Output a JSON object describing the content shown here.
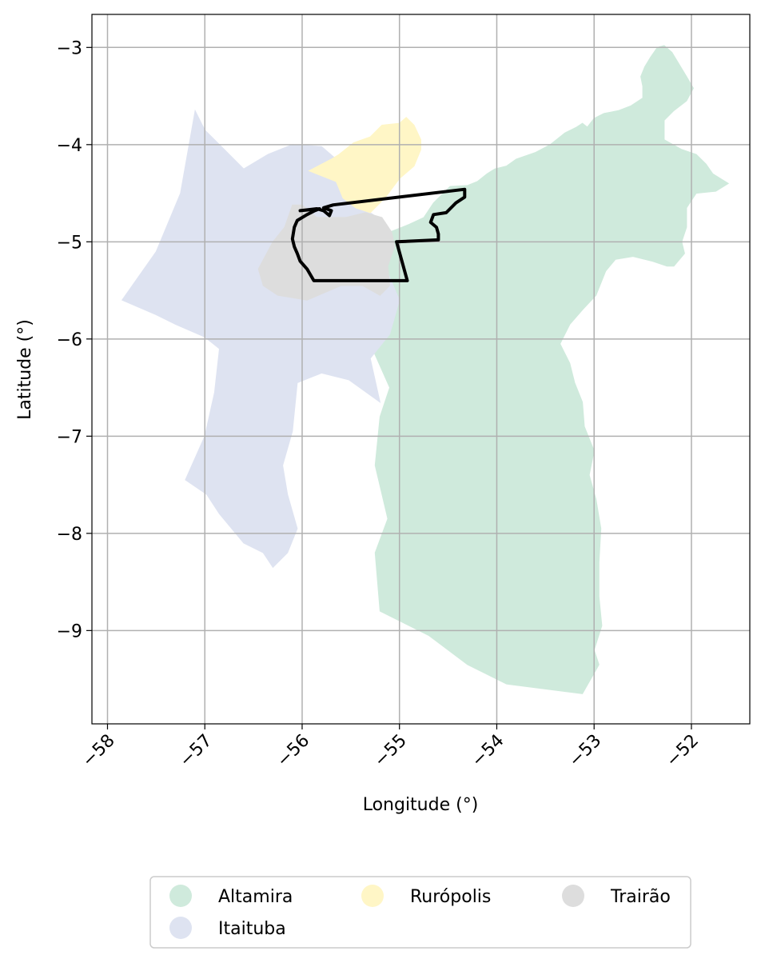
{
  "chart_data": {
    "type": "map",
    "xlabel": "Longitude (°)",
    "ylabel": "Latitude (°)",
    "xlim": [
      -58.16,
      -51.4
    ],
    "ylim": [
      -9.96,
      -2.66
    ],
    "xticks": [
      -58,
      -57,
      -56,
      -55,
      -54,
      -53,
      -52
    ],
    "xtick_labels": [
      "−58",
      "−57",
      "−56",
      "−55",
      "−54",
      "−53",
      "−52"
    ],
    "yticks": [
      -3,
      -4,
      -5,
      -6,
      -7,
      -8,
      -9
    ],
    "ytick_labels": [
      "−3",
      "−4",
      "−5",
      "−6",
      "−7",
      "−8",
      "−9"
    ],
    "grid": true,
    "legend_position": "bottom-center",
    "legend_columns": 3,
    "regions": [
      {
        "name": "Altamira",
        "color": "#cfeadc",
        "outline": [
          [
            -54.75,
            -4.75
          ],
          [
            -54.65,
            -4.6
          ],
          [
            -54.55,
            -4.5
          ],
          [
            -54.48,
            -4.43
          ],
          [
            -54.3,
            -4.42
          ],
          [
            -54.2,
            -4.38
          ],
          [
            -54.1,
            -4.3
          ],
          [
            -54.02,
            -4.25
          ],
          [
            -53.9,
            -4.22
          ],
          [
            -53.8,
            -4.15
          ],
          [
            -53.6,
            -4.08
          ],
          [
            -53.45,
            -4.0
          ],
          [
            -53.3,
            -3.88
          ],
          [
            -53.18,
            -3.82
          ],
          [
            -53.12,
            -3.78
          ],
          [
            -53.07,
            -3.82
          ],
          [
            -53.0,
            -3.73
          ],
          [
            -52.9,
            -3.68
          ],
          [
            -52.75,
            -3.65
          ],
          [
            -52.62,
            -3.6
          ],
          [
            -52.5,
            -3.52
          ],
          [
            -52.5,
            -3.4
          ],
          [
            -52.52,
            -3.3
          ],
          [
            -52.48,
            -3.2
          ],
          [
            -52.42,
            -3.1
          ],
          [
            -52.35,
            -3.0
          ],
          [
            -52.28,
            -2.98
          ],
          [
            -52.2,
            -3.05
          ],
          [
            -52.14,
            -3.15
          ],
          [
            -52.05,
            -3.3
          ],
          [
            -51.98,
            -3.42
          ],
          [
            -52.05,
            -3.55
          ],
          [
            -52.18,
            -3.65
          ],
          [
            -52.28,
            -3.75
          ],
          [
            -52.28,
            -3.95
          ],
          [
            -52.1,
            -4.05
          ],
          [
            -51.95,
            -4.1
          ],
          [
            -51.85,
            -4.2
          ],
          [
            -51.78,
            -4.3
          ],
          [
            -51.62,
            -4.4
          ],
          [
            -51.75,
            -4.48
          ],
          [
            -51.95,
            -4.5
          ],
          [
            -52.05,
            -4.65
          ],
          [
            -52.05,
            -4.85
          ],
          [
            -52.1,
            -5.0
          ],
          [
            -52.07,
            -5.12
          ],
          [
            -52.18,
            -5.25
          ],
          [
            -52.25,
            -5.25
          ],
          [
            -52.4,
            -5.2
          ],
          [
            -52.6,
            -5.15
          ],
          [
            -52.78,
            -5.18
          ],
          [
            -52.88,
            -5.3
          ],
          [
            -52.98,
            -5.55
          ],
          [
            -53.12,
            -5.7
          ],
          [
            -53.25,
            -5.85
          ],
          [
            -53.35,
            -6.05
          ],
          [
            -53.25,
            -6.25
          ],
          [
            -53.2,
            -6.45
          ],
          [
            -53.12,
            -6.65
          ],
          [
            -53.1,
            -6.9
          ],
          [
            -53.0,
            -7.15
          ],
          [
            -53.05,
            -7.4
          ],
          [
            -52.98,
            -7.65
          ],
          [
            -52.93,
            -7.95
          ],
          [
            -52.95,
            -8.3
          ],
          [
            -52.95,
            -8.65
          ],
          [
            -52.92,
            -8.95
          ],
          [
            -53.0,
            -9.2
          ],
          [
            -52.95,
            -9.35
          ],
          [
            -53.12,
            -9.65
          ],
          [
            -53.9,
            -9.55
          ],
          [
            -54.3,
            -9.35
          ],
          [
            -54.7,
            -9.05
          ],
          [
            -55.2,
            -8.8
          ],
          [
            -55.25,
            -8.2
          ],
          [
            -55.12,
            -7.85
          ],
          [
            -55.25,
            -7.3
          ],
          [
            -55.2,
            -6.8
          ],
          [
            -55.1,
            -6.5
          ],
          [
            -55.3,
            -6.05
          ],
          [
            -55.1,
            -5.7
          ],
          [
            -55.2,
            -5.45
          ],
          [
            -55.3,
            -5.25
          ],
          [
            -55.25,
            -5.0
          ],
          [
            -55.1,
            -4.9
          ],
          [
            -54.9,
            -4.82
          ]
        ]
      },
      {
        "name": "Itaituba",
        "color": "#dee3f1",
        "outline": [
          [
            -57.85,
            -5.6
          ],
          [
            -57.5,
            -5.1
          ],
          [
            -57.25,
            -4.5
          ],
          [
            -57.1,
            -3.65
          ],
          [
            -57.0,
            -3.85
          ],
          [
            -56.8,
            -4.05
          ],
          [
            -56.6,
            -4.25
          ],
          [
            -56.35,
            -4.1
          ],
          [
            -56.1,
            -4.0
          ],
          [
            -55.8,
            -4.02
          ],
          [
            -55.65,
            -4.15
          ],
          [
            -55.6,
            -4.38
          ],
          [
            -55.4,
            -4.6
          ],
          [
            -55.3,
            -4.7
          ],
          [
            -55.15,
            -4.8
          ],
          [
            -55.08,
            -4.95
          ],
          [
            -55.15,
            -5.25
          ],
          [
            -55.0,
            -5.6
          ],
          [
            -55.1,
            -5.95
          ],
          [
            -55.3,
            -6.2
          ],
          [
            -55.2,
            -6.65
          ],
          [
            -55.52,
            -6.42
          ],
          [
            -55.8,
            -6.35
          ],
          [
            -56.05,
            -6.45
          ],
          [
            -56.1,
            -6.95
          ],
          [
            -56.2,
            -7.3
          ],
          [
            -56.15,
            -7.6
          ],
          [
            -56.05,
            -7.95
          ],
          [
            -56.15,
            -8.2
          ],
          [
            -56.3,
            -8.35
          ],
          [
            -56.4,
            -8.2
          ],
          [
            -56.6,
            -8.1
          ],
          [
            -56.85,
            -7.8
          ],
          [
            -56.98,
            -7.6
          ],
          [
            -57.2,
            -7.45
          ],
          [
            -57.0,
            -7.0
          ],
          [
            -56.9,
            -6.55
          ],
          [
            -56.85,
            -6.1
          ],
          [
            -57.0,
            -5.98
          ],
          [
            -57.3,
            -5.85
          ],
          [
            -57.5,
            -5.75
          ]
        ]
      },
      {
        "name": "Rurópolis",
        "color": "#fff6c6",
        "outline": [
          [
            -55.93,
            -4.27
          ],
          [
            -55.7,
            -4.15
          ],
          [
            -55.62,
            -4.1
          ],
          [
            -55.47,
            -3.98
          ],
          [
            -55.3,
            -3.92
          ],
          [
            -55.18,
            -3.8
          ],
          [
            -55.0,
            -3.78
          ],
          [
            -54.93,
            -3.72
          ],
          [
            -54.85,
            -3.8
          ],
          [
            -54.78,
            -3.95
          ],
          [
            -54.78,
            -4.05
          ],
          [
            -54.85,
            -4.22
          ],
          [
            -55.0,
            -4.35
          ],
          [
            -55.15,
            -4.55
          ],
          [
            -55.3,
            -4.7
          ],
          [
            -55.45,
            -4.65
          ],
          [
            -55.58,
            -4.55
          ],
          [
            -55.65,
            -4.38
          ]
        ]
      },
      {
        "name": "Trairão",
        "color": "#dddddd",
        "outline": [
          [
            -56.3,
            -5.0
          ],
          [
            -56.18,
            -4.85
          ],
          [
            -56.1,
            -4.62
          ],
          [
            -56.0,
            -4.62
          ],
          [
            -55.85,
            -4.75
          ],
          [
            -55.55,
            -4.75
          ],
          [
            -55.35,
            -4.7
          ],
          [
            -55.18,
            -4.75
          ],
          [
            -55.08,
            -4.9
          ],
          [
            -55.05,
            -5.05
          ],
          [
            -55.12,
            -5.25
          ],
          [
            -55.1,
            -5.45
          ],
          [
            -55.2,
            -5.55
          ],
          [
            -55.38,
            -5.45
          ],
          [
            -55.6,
            -5.45
          ],
          [
            -55.95,
            -5.6
          ],
          [
            -56.25,
            -5.55
          ],
          [
            -56.4,
            -5.45
          ],
          [
            -56.45,
            -5.28
          ]
        ]
      }
    ],
    "study_area": {
      "color": "#000000",
      "outline": [
        [
          -56.02,
          -4.68
        ],
        [
          -55.85,
          -4.66
        ],
        [
          -55.78,
          -4.68
        ],
        [
          -55.72,
          -4.73
        ],
        [
          -55.7,
          -4.68
        ],
        [
          -55.78,
          -4.65
        ],
        [
          -55.68,
          -4.62
        ],
        [
          -54.33,
          -4.46
        ],
        [
          -54.33,
          -4.54
        ],
        [
          -54.42,
          -4.6
        ],
        [
          -54.52,
          -4.7
        ],
        [
          -54.65,
          -4.72
        ],
        [
          -54.68,
          -4.8
        ],
        [
          -54.62,
          -4.85
        ],
        [
          -54.6,
          -4.92
        ],
        [
          -54.6,
          -4.98
        ],
        [
          -55.03,
          -5.0
        ],
        [
          -54.92,
          -5.4
        ],
        [
          -55.88,
          -5.4
        ],
        [
          -55.95,
          -5.28
        ],
        [
          -56.02,
          -5.2
        ],
        [
          -56.05,
          -5.12
        ],
        [
          -56.08,
          -5.05
        ],
        [
          -56.1,
          -4.97
        ],
        [
          -56.08,
          -4.85
        ],
        [
          -56.05,
          -4.78
        ],
        [
          -55.95,
          -4.72
        ],
        [
          -55.87,
          -4.68
        ],
        [
          -55.82,
          -4.66
        ]
      ]
    },
    "legend": [
      {
        "label": "Altamira",
        "color": "#cfeadc"
      },
      {
        "label": "Rurópolis",
        "color": "#fff6c6"
      },
      {
        "label": "Trairão",
        "color": "#dddddd"
      },
      {
        "label": "Itaituba",
        "color": "#dee3f1"
      }
    ]
  }
}
